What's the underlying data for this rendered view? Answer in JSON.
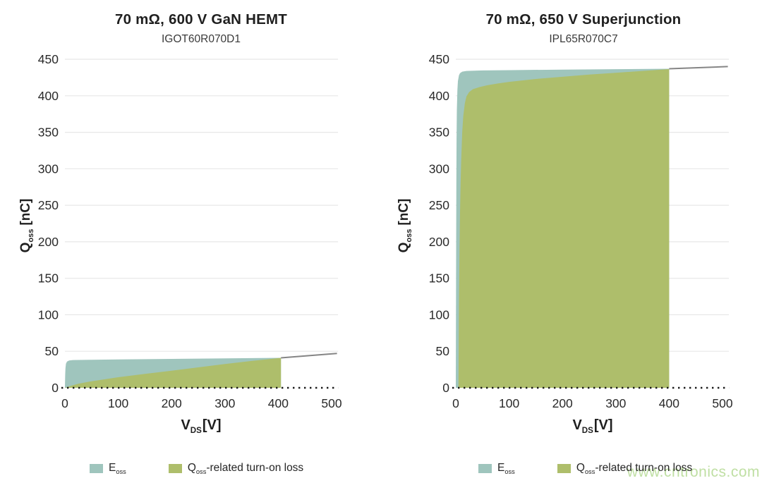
{
  "axis": {
    "y": {
      "sym": "Q",
      "sub": "oss",
      "unit": "[nC]"
    },
    "x": {
      "sym": "V",
      "sub": "DS",
      "unit": "[V]"
    }
  },
  "legend": {
    "items": [
      {
        "color": "#9fc5bd",
        "sym": "E",
        "sub": "oss",
        "rest": ""
      },
      {
        "color": "#aebe6b",
        "sym": "Q",
        "sub": "oss",
        "rest": "-related turn-on loss"
      }
    ]
  },
  "watermark": {
    "text": "www.cntronics.com",
    "color": "#b9dc9a"
  },
  "colors": {
    "grid": "#e7e7e7",
    "tick_text": "#2a2a2a",
    "extension_line": "#858585",
    "baseline_dots": "#1a1a1a",
    "eoss_fill": "#9fc5bd",
    "qoss_fill": "#aebe6b"
  },
  "chart_data": [
    {
      "type": "area",
      "title": "70 mΩ, 600 V GaN HEMT",
      "subtitle": "IGOT60R070D1",
      "xlabel": "V_DS [V]",
      "ylabel": "Q_oss [nC]",
      "xlim": [
        0,
        512
      ],
      "ylim": [
        0,
        450
      ],
      "xticks": [
        0,
        100,
        200,
        300,
        400,
        500
      ],
      "yticks": [
        0,
        50,
        100,
        150,
        200,
        250,
        300,
        350,
        400,
        450
      ],
      "grid": "horizontal",
      "legend_position": "bottom",
      "series": [
        {
          "name": "E_oss",
          "kind": "area",
          "color": "#9fc5bd",
          "points": [
            [
              0,
              0
            ],
            [
              0.5,
              18
            ],
            [
              1,
              27
            ],
            [
              2,
              33
            ],
            [
              4,
              36
            ],
            [
              8,
              37.5
            ],
            [
              15,
              38
            ],
            [
              50,
              38.4
            ],
            [
              100,
              38.8
            ],
            [
              150,
              39.2
            ],
            [
              200,
              39.6
            ],
            [
              250,
              40
            ],
            [
              300,
              40.3
            ],
            [
              350,
              40.7
            ],
            [
              405,
              41
            ]
          ]
        },
        {
          "name": "Q_oss-related turn-on loss",
          "kind": "area",
          "color": "#aebe6b",
          "points": [
            [
              0,
              0
            ],
            [
              10,
              2.5
            ],
            [
              25,
              5.5
            ],
            [
              50,
              9
            ],
            [
              100,
              14.5
            ],
            [
              150,
              19
            ],
            [
              200,
              23.5
            ],
            [
              250,
              28
            ],
            [
              300,
              32.5
            ],
            [
              350,
              36.8
            ],
            [
              405,
              41
            ]
          ]
        },
        {
          "name": "Q_oss extension",
          "kind": "line",
          "color": "#858585",
          "points": [
            [
              405,
              41
            ],
            [
              510,
              47
            ]
          ]
        }
      ]
    },
    {
      "type": "area",
      "title": "70 mΩ, 650 V Superjunction",
      "subtitle": "IPL65R070C7",
      "xlabel": "V_DS [V]",
      "ylabel": "Q_oss [nC]",
      "xlim": [
        0,
        512
      ],
      "ylim": [
        0,
        450
      ],
      "xticks": [
        0,
        100,
        200,
        300,
        400,
        500
      ],
      "yticks": [
        0,
        50,
        100,
        150,
        200,
        250,
        300,
        350,
        400,
        450
      ],
      "grid": "horizontal",
      "legend_position": "bottom",
      "series": [
        {
          "name": "E_oss",
          "kind": "area",
          "color": "#9fc5bd",
          "points": [
            [
              0,
              0
            ],
            [
              0.5,
              150
            ],
            [
              1,
              280
            ],
            [
              1.5,
              340
            ],
            [
              2,
              380
            ],
            [
              3,
              408
            ],
            [
              4,
              420
            ],
            [
              6,
              428
            ],
            [
              8,
              431
            ],
            [
              12,
              433
            ],
            [
              20,
              434
            ],
            [
              50,
              434.6
            ],
            [
              100,
              435
            ],
            [
              200,
              435.8
            ],
            [
              300,
              436.4
            ],
            [
              400,
              437
            ]
          ]
        },
        {
          "name": "Q_oss-related turn-on loss",
          "kind": "area",
          "color": "#aebe6b",
          "points": [
            [
              5,
              0
            ],
            [
              5.5,
              60
            ],
            [
              6,
              120
            ],
            [
              7,
              190
            ],
            [
              8,
              240
            ],
            [
              9,
              280
            ],
            [
              10,
              310
            ],
            [
              12,
              350
            ],
            [
              14,
              372
            ],
            [
              17,
              390
            ],
            [
              20,
              399
            ],
            [
              25,
              405
            ],
            [
              32,
              409
            ],
            [
              45,
              412
            ],
            [
              60,
              414.5
            ],
            [
              80,
              417
            ],
            [
              100,
              419
            ],
            [
              150,
              423
            ],
            [
              200,
              426
            ],
            [
              250,
              429
            ],
            [
              300,
              431.5
            ],
            [
              350,
              434
            ],
            [
              400,
              436.5
            ]
          ]
        },
        {
          "name": "Q_oss extension",
          "kind": "line",
          "color": "#858585",
          "points": [
            [
              400,
              437
            ],
            [
              510,
              440
            ]
          ]
        }
      ]
    }
  ]
}
